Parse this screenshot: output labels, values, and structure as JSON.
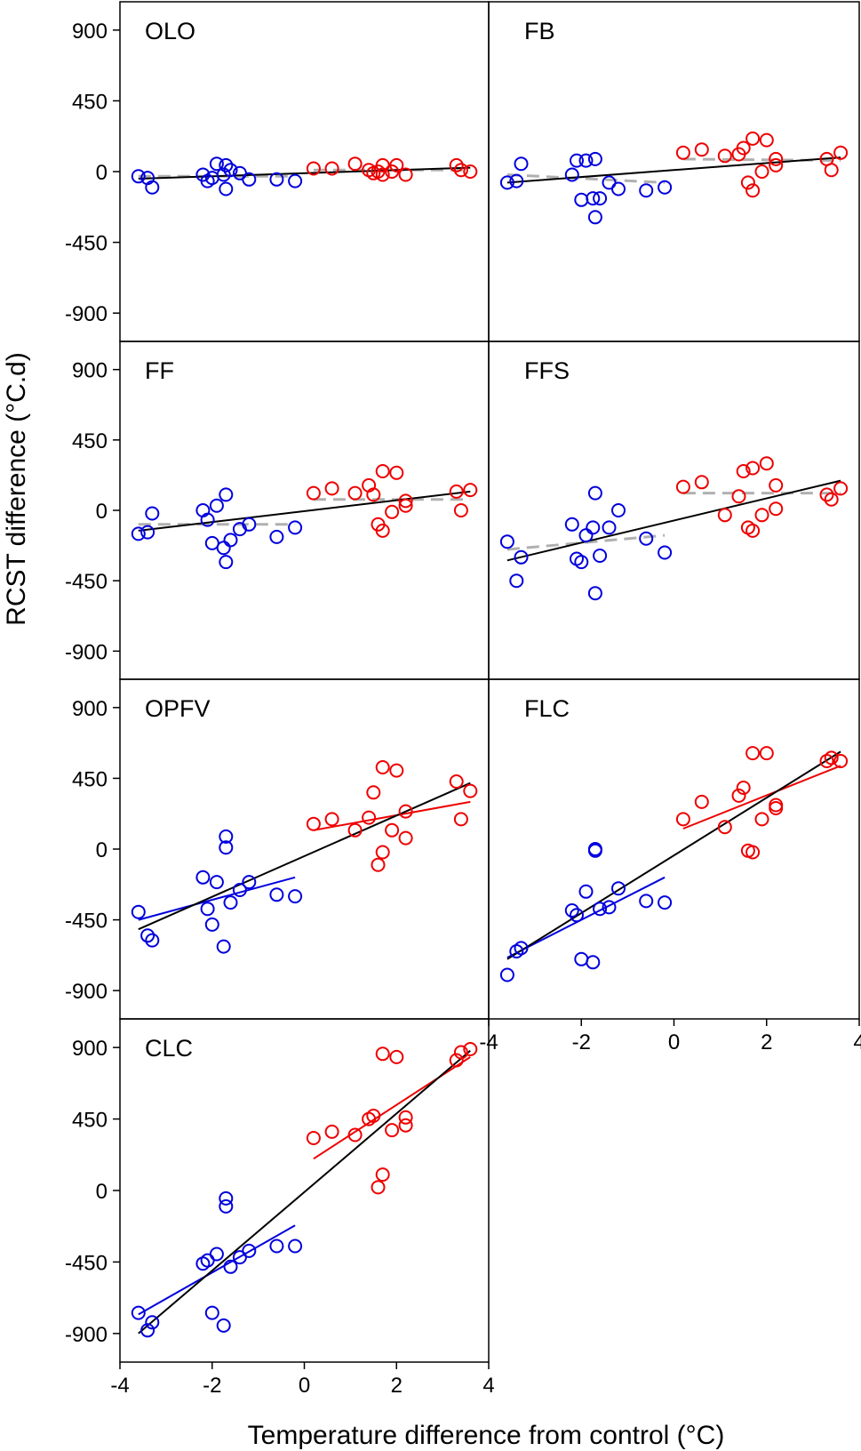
{
  "chart_data": {
    "type": "scatter",
    "xlabel": "Temperature difference from control (°C)",
    "ylabel": "RCST difference  (°C.d)",
    "xlim": [
      -4,
      4
    ],
    "ylim": [
      -1080,
      1080
    ],
    "xticks": [
      -4,
      -2,
      0,
      2,
      4
    ],
    "yticks": [
      900,
      450,
      0,
      -450,
      -900
    ],
    "series_colors": {
      "cool": "#0000dd",
      "warm": "#ee0000",
      "overall_fit": "#000000",
      "null_fit": "#b0b0b0"
    },
    "panels": [
      {
        "label": "OLO",
        "blue": [
          [
            -3.6,
            -30
          ],
          [
            -3.4,
            -40
          ],
          [
            -3.3,
            -100
          ],
          [
            -2.2,
            -20
          ],
          [
            -2.1,
            -60
          ],
          [
            -2.0,
            -40
          ],
          [
            -1.9,
            50
          ],
          [
            -1.75,
            -20
          ],
          [
            -1.7,
            40
          ],
          [
            -1.7,
            -110
          ],
          [
            -1.6,
            10
          ],
          [
            -1.4,
            -10
          ],
          [
            -1.2,
            -50
          ],
          [
            -0.6,
            -50
          ],
          [
            -0.2,
            -60
          ]
        ],
        "red": [
          [
            0.2,
            20
          ],
          [
            0.6,
            20
          ],
          [
            1.1,
            50
          ],
          [
            1.4,
            10
          ],
          [
            1.5,
            -10
          ],
          [
            1.6,
            0
          ],
          [
            1.7,
            -20
          ],
          [
            1.7,
            40
          ],
          [
            1.9,
            0
          ],
          [
            2.0,
            40
          ],
          [
            2.2,
            -20
          ],
          [
            3.3,
            40
          ],
          [
            3.4,
            10
          ],
          [
            3.6,
            0
          ]
        ],
        "fits": {
          "overall": [
            [
              -3.6,
              -45
            ],
            [
              3.6,
              25
            ]
          ],
          "null": [
            [
              -3.6,
              -30
            ],
            [
              -0.2,
              -30
            ],
            [
              0.2,
              10
            ],
            [
              3.6,
              10
            ]
          ]
        }
      },
      {
        "label": "FB",
        "blue": [
          [
            -3.6,
            -70
          ],
          [
            -3.4,
            -60
          ],
          [
            -3.3,
            50
          ],
          [
            -2.2,
            -20
          ],
          [
            -2.1,
            70
          ],
          [
            -2.0,
            -180
          ],
          [
            -1.9,
            70
          ],
          [
            -1.75,
            -170
          ],
          [
            -1.7,
            -290
          ],
          [
            -1.7,
            80
          ],
          [
            -1.6,
            -170
          ],
          [
            -1.4,
            -70
          ],
          [
            -1.2,
            -110
          ],
          [
            -0.6,
            -120
          ],
          [
            -0.2,
            -100
          ]
        ],
        "red": [
          [
            0.2,
            120
          ],
          [
            0.6,
            140
          ],
          [
            1.1,
            100
          ],
          [
            1.4,
            110
          ],
          [
            1.5,
            150
          ],
          [
            1.6,
            -70
          ],
          [
            1.7,
            -120
          ],
          [
            1.7,
            210
          ],
          [
            1.9,
            0
          ],
          [
            2.0,
            200
          ],
          [
            2.2,
            40
          ],
          [
            2.2,
            80
          ],
          [
            3.3,
            80
          ],
          [
            3.4,
            10
          ],
          [
            3.6,
            120
          ]
        ],
        "fits": {
          "overall": [
            [
              -3.6,
              -70
            ],
            [
              3.6,
              90
            ]
          ],
          "null": [
            [
              -3.6,
              -20
            ],
            [
              -0.2,
              -70
            ],
            [
              0.2,
              80
            ],
            [
              3.6,
              70
            ]
          ]
        }
      },
      {
        "label": "FF",
        "blue": [
          [
            -3.6,
            -150
          ],
          [
            -3.4,
            -140
          ],
          [
            -3.3,
            -20
          ],
          [
            -2.2,
            0
          ],
          [
            -2.1,
            -60
          ],
          [
            -2.0,
            -210
          ],
          [
            -1.9,
            30
          ],
          [
            -1.75,
            -240
          ],
          [
            -1.7,
            -330
          ],
          [
            -1.7,
            100
          ],
          [
            -1.6,
            -190
          ],
          [
            -1.4,
            -120
          ],
          [
            -1.2,
            -90
          ],
          [
            -0.6,
            -170
          ],
          [
            -0.2,
            -110
          ]
        ],
        "red": [
          [
            0.2,
            110
          ],
          [
            0.6,
            140
          ],
          [
            1.1,
            110
          ],
          [
            1.4,
            160
          ],
          [
            1.5,
            100
          ],
          [
            1.6,
            -90
          ],
          [
            1.7,
            -130
          ],
          [
            1.7,
            250
          ],
          [
            1.9,
            -10
          ],
          [
            2.0,
            240
          ],
          [
            2.2,
            60
          ],
          [
            2.2,
            30
          ],
          [
            3.3,
            120
          ],
          [
            3.4,
            0
          ],
          [
            3.6,
            130
          ]
        ],
        "fits": {
          "overall": [
            [
              -3.6,
              -130
            ],
            [
              3.6,
              120
            ]
          ],
          "null": [
            [
              -3.6,
              -90
            ],
            [
              -0.2,
              -90
            ],
            [
              0.2,
              70
            ],
            [
              3.6,
              70
            ]
          ]
        }
      },
      {
        "label": "FFS",
        "blue": [
          [
            -3.6,
            -200
          ],
          [
            -3.4,
            -450
          ],
          [
            -3.3,
            -300
          ],
          [
            -2.2,
            -90
          ],
          [
            -2.1,
            -310
          ],
          [
            -2.0,
            -330
          ],
          [
            -1.9,
            -160
          ],
          [
            -1.75,
            -110
          ],
          [
            -1.7,
            -530
          ],
          [
            -1.7,
            110
          ],
          [
            -1.6,
            -290
          ],
          [
            -1.4,
            -110
          ],
          [
            -1.2,
            0
          ],
          [
            -0.6,
            -180
          ],
          [
            -0.2,
            -270
          ]
        ],
        "red": [
          [
            0.2,
            150
          ],
          [
            0.6,
            180
          ],
          [
            1.1,
            -30
          ],
          [
            1.4,
            90
          ],
          [
            1.5,
            250
          ],
          [
            1.6,
            -110
          ],
          [
            1.7,
            -130
          ],
          [
            1.7,
            270
          ],
          [
            1.9,
            -30
          ],
          [
            2.0,
            300
          ],
          [
            2.2,
            160
          ],
          [
            2.2,
            10
          ],
          [
            3.3,
            100
          ],
          [
            3.4,
            70
          ],
          [
            3.6,
            140
          ]
        ],
        "fits": {
          "overall": [
            [
              -3.6,
              -320
            ],
            [
              3.6,
              190
            ]
          ],
          "null": [
            [
              -3.6,
              -250
            ],
            [
              -0.2,
              -160
            ],
            [
              0.2,
              110
            ],
            [
              3.6,
              110
            ]
          ]
        }
      },
      {
        "label": "OPFV",
        "blue": [
          [
            -3.6,
            -400
          ],
          [
            -3.4,
            -550
          ],
          [
            -3.3,
            -580
          ],
          [
            -2.2,
            -180
          ],
          [
            -2.1,
            -380
          ],
          [
            -2.0,
            -480
          ],
          [
            -1.9,
            -210
          ],
          [
            -1.75,
            -620
          ],
          [
            -1.7,
            10
          ],
          [
            -1.7,
            80
          ],
          [
            -1.6,
            -340
          ],
          [
            -1.4,
            -260
          ],
          [
            -1.2,
            -210
          ],
          [
            -0.6,
            -290
          ],
          [
            -0.2,
            -300
          ]
        ],
        "red": [
          [
            0.2,
            160
          ],
          [
            0.6,
            190
          ],
          [
            1.1,
            120
          ],
          [
            1.4,
            200
          ],
          [
            1.5,
            360
          ],
          [
            1.6,
            -100
          ],
          [
            1.7,
            -20
          ],
          [
            1.7,
            520
          ],
          [
            1.9,
            120
          ],
          [
            2.0,
            500
          ],
          [
            2.2,
            240
          ],
          [
            2.2,
            70
          ],
          [
            3.3,
            430
          ],
          [
            3.4,
            190
          ],
          [
            3.6,
            370
          ]
        ],
        "fits": {
          "overall": [
            [
              -3.6,
              -510
            ],
            [
              3.6,
              420
            ]
          ],
          "blue": [
            [
              -3.6,
              -450
            ],
            [
              -0.2,
              -180
            ]
          ],
          "red": [
            [
              0.2,
              120
            ],
            [
              3.6,
              300
            ]
          ]
        }
      },
      {
        "label": "FLC",
        "blue": [
          [
            -3.6,
            -800
          ],
          [
            -3.4,
            -650
          ],
          [
            -3.3,
            -630
          ],
          [
            -2.2,
            -390
          ],
          [
            -2.1,
            -420
          ],
          [
            -2.0,
            -700
          ],
          [
            -1.9,
            -270
          ],
          [
            -1.75,
            -720
          ],
          [
            -1.7,
            0
          ],
          [
            -1.7,
            -10
          ],
          [
            -1.6,
            -380
          ],
          [
            -1.4,
            -370
          ],
          [
            -1.2,
            -250
          ],
          [
            -0.6,
            -330
          ],
          [
            -0.2,
            -340
          ]
        ],
        "red": [
          [
            0.2,
            190
          ],
          [
            0.6,
            300
          ],
          [
            1.1,
            140
          ],
          [
            1.4,
            340
          ],
          [
            1.5,
            390
          ],
          [
            1.6,
            -10
          ],
          [
            1.7,
            -20
          ],
          [
            1.7,
            610
          ],
          [
            1.9,
            190
          ],
          [
            2.0,
            610
          ],
          [
            2.2,
            280
          ],
          [
            2.2,
            260
          ],
          [
            3.3,
            560
          ],
          [
            3.4,
            580
          ],
          [
            3.6,
            560
          ]
        ],
        "fits": {
          "overall": [
            [
              -3.6,
              -700
            ],
            [
              3.6,
              620
            ]
          ],
          "blue": [
            [
              -3.6,
              -690
            ],
            [
              -0.2,
              -180
            ]
          ],
          "red": [
            [
              0.2,
              130
            ],
            [
              3.6,
              530
            ]
          ]
        }
      },
      {
        "label": "CLC",
        "blue": [
          [
            -3.6,
            -770
          ],
          [
            -3.4,
            -880
          ],
          [
            -3.3,
            -830
          ],
          [
            -2.2,
            -460
          ],
          [
            -2.1,
            -440
          ],
          [
            -2.0,
            -770
          ],
          [
            -1.9,
            -400
          ],
          [
            -1.75,
            -850
          ],
          [
            -1.7,
            -100
          ],
          [
            -1.7,
            -50
          ],
          [
            -1.6,
            -480
          ],
          [
            -1.4,
            -420
          ],
          [
            -1.2,
            -380
          ],
          [
            -0.6,
            -350
          ],
          [
            -0.2,
            -350
          ]
        ],
        "red": [
          [
            0.2,
            330
          ],
          [
            0.6,
            370
          ],
          [
            1.1,
            350
          ],
          [
            1.4,
            450
          ],
          [
            1.5,
            470
          ],
          [
            1.6,
            20
          ],
          [
            1.7,
            100
          ],
          [
            1.7,
            860
          ],
          [
            1.9,
            380
          ],
          [
            2.0,
            840
          ],
          [
            2.2,
            410
          ],
          [
            2.2,
            460
          ],
          [
            3.3,
            820
          ],
          [
            3.4,
            870
          ],
          [
            3.6,
            890
          ]
        ],
        "fits": {
          "overall": [
            [
              -3.6,
              -900
            ],
            [
              3.6,
              880
            ]
          ],
          "blue": [
            [
              -3.6,
              -780
            ],
            [
              -0.2,
              -220
            ]
          ],
          "red": [
            [
              0.2,
              200
            ],
            [
              3.6,
              840
            ]
          ]
        }
      }
    ]
  }
}
